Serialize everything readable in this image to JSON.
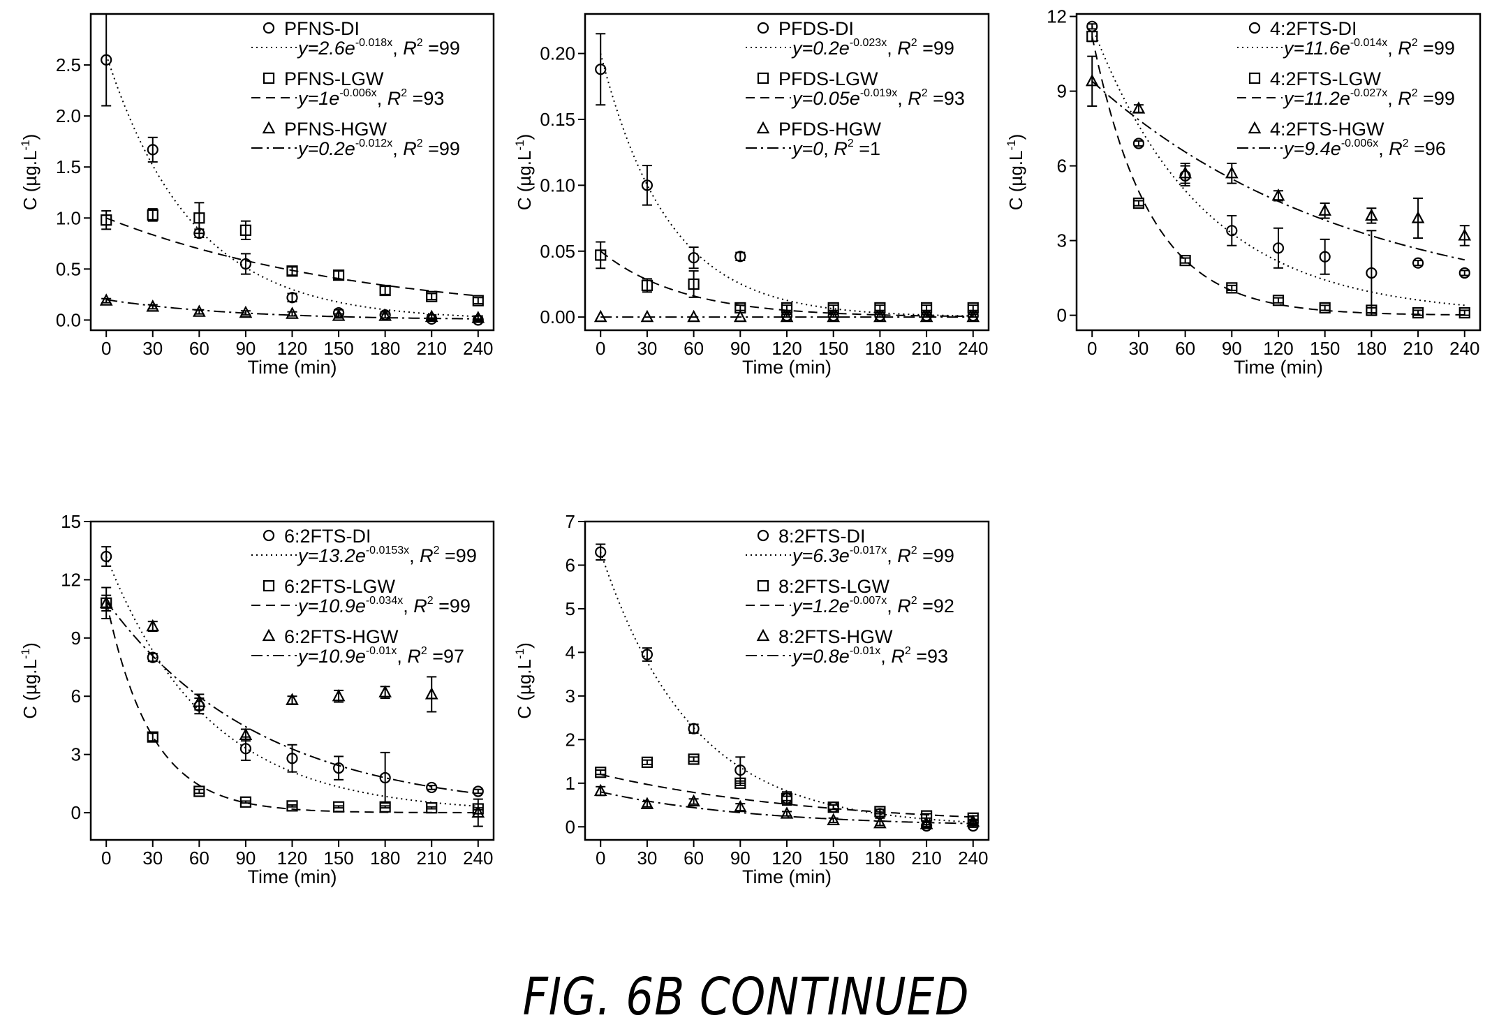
{
  "figure": {
    "caption": "FIG. 6B CONTINUED"
  },
  "chart_data": [
    {
      "type": "scatter",
      "xlabel": "Time (min)",
      "ylabel": "C (µg.L-1)",
      "xlim": [
        -10,
        250
      ],
      "ylim": [
        -0.1,
        3.0
      ],
      "xticks": [
        0,
        30,
        60,
        90,
        120,
        150,
        180,
        210,
        240
      ],
      "yticks": [
        0.0,
        0.5,
        1.0,
        1.5,
        2.0,
        2.5
      ],
      "ytick_labels": [
        "0.0",
        "0.5",
        "1.0",
        "1.5",
        "2.0",
        "2.5"
      ],
      "legend_position": "top-right",
      "series": [
        {
          "name": "PFNS-DI",
          "marker": "circle",
          "x": [
            0,
            30,
            60,
            90,
            120,
            150,
            180,
            210,
            240
          ],
          "y": [
            2.55,
            1.67,
            0.85,
            0.55,
            0.22,
            0.07,
            0.05,
            0.01,
            0.0
          ],
          "err": [
            0.45,
            0.12,
            0.04,
            0.1,
            0.04,
            0.03,
            0.03,
            0.01,
            0.01
          ],
          "fit": {
            "curve": "exp",
            "a": 2.6,
            "k": -0.018,
            "style": "dotted",
            "eq": {
              "pre": "y=2.6e",
              "exp": "-0.018x",
              "r2": "=99"
            }
          }
        },
        {
          "name": "PFNS-LGW",
          "marker": "square",
          "x": [
            0,
            30,
            60,
            90,
            120,
            150,
            180,
            210,
            240
          ],
          "y": [
            0.98,
            1.03,
            1.0,
            0.88,
            0.48,
            0.44,
            0.29,
            0.23,
            0.19
          ],
          "err": [
            0.09,
            0.06,
            0.15,
            0.09,
            0.04,
            0.04,
            0.04,
            0.03,
            0.03
          ],
          "fit": {
            "curve": "exp",
            "a": 1.0,
            "k": -0.006,
            "style": "dashed",
            "eq": {
              "pre": "y=1e",
              "exp": "-0.006x",
              "r2": "=93"
            }
          }
        },
        {
          "name": "PFNS-HGW",
          "marker": "triangle",
          "x": [
            0,
            30,
            60,
            90,
            120,
            150,
            180,
            210,
            240
          ],
          "y": [
            0.19,
            0.13,
            0.08,
            0.07,
            0.06,
            0.04,
            0.04,
            0.03,
            0.02
          ],
          "err": [
            0.02,
            0.02,
            0.02,
            0.02,
            0.02,
            0.02,
            0.02,
            0.02,
            0.02
          ],
          "fit": {
            "curve": "exp",
            "a": 0.2,
            "k": -0.012,
            "style": "dashdot",
            "eq": {
              "pre": "y=0.2e",
              "exp": "-0.012x",
              "r2": "=99"
            }
          }
        }
      ]
    },
    {
      "type": "scatter",
      "xlabel": "Time (min)",
      "ylabel": "C (µg.L-1)",
      "xlim": [
        -10,
        250
      ],
      "ylim": [
        -0.01,
        0.23
      ],
      "xticks": [
        0,
        30,
        60,
        90,
        120,
        150,
        180,
        210,
        240
      ],
      "yticks": [
        0.0,
        0.05,
        0.1,
        0.15,
        0.2
      ],
      "ytick_labels": [
        "0.00",
        "0.05",
        "0.10",
        "0.15",
        "0.20"
      ],
      "legend_position": "top-right",
      "series": [
        {
          "name": "PFDS-DI",
          "marker": "circle",
          "x": [
            0,
            30,
            60,
            90,
            120,
            150,
            180,
            210,
            240
          ],
          "y": [
            0.188,
            0.1,
            0.045,
            0.046,
            0.001,
            0.001,
            0.001,
            0.001,
            0.001
          ],
          "err": [
            0.027,
            0.015,
            0.008,
            0.003,
            0.001,
            0.001,
            0.001,
            0.001,
            0.001
          ],
          "fit": {
            "curve": "exp",
            "a": 0.2,
            "k": -0.023,
            "style": "dotted",
            "eq": {
              "pre": "y=0.2e",
              "exp": "-0.023x",
              "r2": "=99"
            }
          }
        },
        {
          "name": "PFDS-LGW",
          "marker": "square",
          "x": [
            0,
            30,
            60,
            90,
            120,
            150,
            180,
            210,
            240
          ],
          "y": [
            0.047,
            0.024,
            0.025,
            0.007,
            0.007,
            0.007,
            0.007,
            0.007,
            0.007
          ],
          "err": [
            0.01,
            0.005,
            0.01,
            0.002,
            0.002,
            0.002,
            0.002,
            0.002,
            0.002
          ],
          "fit": {
            "curve": "exp",
            "a": 0.05,
            "k": -0.019,
            "style": "dashed",
            "eq": {
              "pre": "y=0.05e",
              "exp": "-0.019x",
              "r2": "=93"
            }
          }
        },
        {
          "name": "PFDS-HGW",
          "marker": "triangle",
          "x": [
            0,
            30,
            60,
            90,
            120,
            150,
            180,
            210,
            240
          ],
          "y": [
            0,
            0,
            0,
            0,
            0,
            0,
            0,
            0,
            0
          ],
          "err": [
            0,
            0,
            0,
            0,
            0,
            0,
            0,
            0,
            0
          ],
          "fit": {
            "curve": "const",
            "a": 0,
            "k": 0,
            "style": "dashdot",
            "eq": {
              "pre": "y=0",
              "exp": "",
              "r2": "=1"
            }
          }
        }
      ]
    },
    {
      "type": "scatter",
      "xlabel": "Time (min)",
      "ylabel": "C (µg.L-1)",
      "xlim": [
        -10,
        250
      ],
      "ylim": [
        -0.6,
        12.1
      ],
      "xticks": [
        0,
        30,
        60,
        90,
        120,
        150,
        180,
        210,
        240
      ],
      "yticks": [
        0,
        3,
        6,
        9,
        12
      ],
      "ytick_labels": [
        "0",
        "3",
        "6",
        "9",
        "12"
      ],
      "legend_position": "top-right",
      "series": [
        {
          "name": "4:2FTS-DI",
          "marker": "circle",
          "x": [
            0,
            30,
            60,
            90,
            120,
            150,
            180,
            210,
            240
          ],
          "y": [
            11.6,
            6.9,
            5.6,
            3.4,
            2.7,
            2.35,
            1.7,
            2.1,
            1.7
          ],
          "err": [
            0.1,
            0.1,
            0.4,
            0.6,
            0.8,
            0.7,
            1.7,
            0.1,
            0.1
          ],
          "fit": {
            "curve": "exp",
            "a": 11.6,
            "k": -0.014,
            "style": "dotted",
            "eq": {
              "pre": "y=11.6e",
              "exp": "-0.014x",
              "r2": "=99"
            }
          }
        },
        {
          "name": "4:2FTS-LGW",
          "marker": "square",
          "x": [
            0,
            30,
            60,
            90,
            120,
            150,
            180,
            210,
            240
          ],
          "y": [
            11.2,
            4.5,
            2.2,
            1.1,
            0.6,
            0.3,
            0.2,
            0.1,
            0.1
          ],
          "err": [
            0.2,
            0.1,
            0.1,
            0.1,
            0.1,
            0.1,
            0.1,
            0.1,
            0.1
          ],
          "fit": {
            "curve": "exp",
            "a": 11.2,
            "k": -0.027,
            "style": "dashed",
            "eq": {
              "pre": "y=11.2e",
              "exp": "-0.027x",
              "r2": "=99"
            }
          }
        },
        {
          "name": "4:2FTS-HGW",
          "marker": "triangle",
          "x": [
            0,
            30,
            60,
            90,
            120,
            150,
            180,
            210,
            240
          ],
          "y": [
            9.4,
            8.3,
            5.7,
            5.7,
            4.8,
            4.2,
            4.0,
            3.9,
            3.2
          ],
          "err": [
            1.0,
            0.15,
            0.4,
            0.4,
            0.2,
            0.3,
            0.3,
            0.8,
            0.4
          ],
          "fit": {
            "curve": "exp",
            "a": 9.4,
            "k": -0.006,
            "style": "dashdot",
            "eq": {
              "pre": "y=9.4e",
              "exp": "-0.006x",
              "r2": "=96"
            }
          }
        }
      ]
    },
    {
      "type": "scatter",
      "xlabel": "Time (min)",
      "ylabel": "C (µg.L-1)",
      "xlim": [
        -10,
        250
      ],
      "ylim": [
        -1.4,
        15
      ],
      "xticks": [
        0,
        30,
        60,
        90,
        120,
        150,
        180,
        210,
        240
      ],
      "yticks": [
        0,
        3,
        6,
        9,
        12,
        15
      ],
      "ytick_labels": [
        "0",
        "3",
        "6",
        "9",
        "12",
        "15"
      ],
      "legend_position": "top-right",
      "series": [
        {
          "name": "6:2FTS-DI",
          "marker": "circle",
          "x": [
            0,
            30,
            60,
            90,
            120,
            150,
            180,
            210,
            240
          ],
          "y": [
            13.2,
            8.0,
            5.5,
            3.3,
            2.8,
            2.3,
            1.8,
            1.3,
            1.1
          ],
          "err": [
            0.5,
            0.2,
            0.4,
            0.6,
            0.7,
            0.6,
            1.3,
            0.1,
            0.1
          ],
          "fit": {
            "curve": "exp",
            "a": 13.2,
            "k": -0.0153,
            "style": "dotted",
            "eq": {
              "pre": "y=13.2e",
              "exp": "-0.0153x",
              "r2": "=99"
            }
          }
        },
        {
          "name": "6:2FTS-LGW",
          "marker": "square",
          "x": [
            0,
            30,
            60,
            90,
            120,
            150,
            180,
            210,
            240
          ],
          "y": [
            10.8,
            3.9,
            1.1,
            0.55,
            0.35,
            0.3,
            0.3,
            0.25,
            0.2
          ],
          "err": [
            0.8,
            0.2,
            0.1,
            0.05,
            0.05,
            0.05,
            0.05,
            0.05,
            0.05
          ],
          "fit": {
            "curve": "exp",
            "a": 10.9,
            "k": -0.034,
            "style": "dashed",
            "eq": {
              "pre": "y=10.9e",
              "exp": "-0.034x",
              "r2": "=99"
            }
          }
        },
        {
          "name": "6:2FTS-HGW",
          "marker": "triangle",
          "x": [
            0,
            30,
            60,
            90,
            120,
            150,
            180,
            210,
            240
          ],
          "y": [
            10.8,
            9.6,
            5.7,
            4.0,
            5.8,
            6.0,
            6.2,
            6.1,
            0.0
          ],
          "err": [
            0.4,
            0.25,
            0.4,
            0.3,
            0.2,
            0.3,
            0.3,
            0.9,
            0.7
          ],
          "fit": {
            "curve": "exp",
            "a": 10.9,
            "k": -0.01,
            "style": "dashdot",
            "eq": {
              "pre": "y=10.9e",
              "exp": "-0.01x",
              "r2": "=97"
            }
          }
        }
      ]
    },
    {
      "type": "scatter",
      "xlabel": "Time (min)",
      "ylabel": "C (µg.L-1)",
      "xlim": [
        -10,
        250
      ],
      "ylim": [
        -0.3,
        7
      ],
      "xticks": [
        0,
        30,
        60,
        90,
        120,
        150,
        180,
        210,
        240
      ],
      "yticks": [
        0,
        1,
        2,
        3,
        4,
        5,
        6,
        7
      ],
      "ytick_labels": [
        "0",
        "1",
        "2",
        "3",
        "4",
        "5",
        "6",
        "7"
      ],
      "legend_position": "top-right",
      "series": [
        {
          "name": "8:2FTS-DI",
          "marker": "circle",
          "x": [
            0,
            30,
            60,
            90,
            120,
            150,
            180,
            210,
            240
          ],
          "y": [
            6.3,
            3.95,
            2.25,
            1.3,
            0.65,
            0.45,
            0.3,
            0.02,
            0.02
          ],
          "err": [
            0.18,
            0.15,
            0.1,
            0.3,
            0.15,
            0.05,
            0.1,
            0.03,
            0.03
          ],
          "fit": {
            "curve": "exp",
            "a": 6.3,
            "k": -0.017,
            "style": "dotted",
            "eq": {
              "pre": "y=6.3e",
              "exp": "-0.017x",
              "r2": "=99"
            }
          }
        },
        {
          "name": "8:2FTS-LGW",
          "marker": "square",
          "x": [
            0,
            30,
            60,
            90,
            120,
            150,
            180,
            210,
            240
          ],
          "y": [
            1.25,
            1.48,
            1.55,
            1.0,
            0.65,
            0.45,
            0.35,
            0.25,
            0.2
          ],
          "err": [
            0.05,
            0.05,
            0.05,
            0.05,
            0.05,
            0.05,
            0.05,
            0.05,
            0.05
          ],
          "fit": {
            "curve": "exp",
            "a": 1.2,
            "k": -0.007,
            "style": "dashed",
            "eq": {
              "pre": "y=1.2e",
              "exp": "-0.007x",
              "r2": "=92"
            }
          }
        },
        {
          "name": "8:2FTS-HGW",
          "marker": "triangle",
          "x": [
            0,
            30,
            60,
            90,
            120,
            150,
            180,
            210,
            240
          ],
          "y": [
            0.82,
            0.52,
            0.58,
            0.45,
            0.3,
            0.15,
            0.08,
            0.06,
            0.12
          ],
          "err": [
            0.1,
            0.06,
            0.06,
            0.08,
            0.05,
            0.05,
            0.05,
            0.05,
            0.05
          ],
          "fit": {
            "curve": "exp",
            "a": 0.8,
            "k": -0.01,
            "style": "dashdot",
            "eq": {
              "pre": "y=0.8e",
              "exp": "-0.01x",
              "r2": "=93"
            }
          }
        }
      ]
    }
  ]
}
